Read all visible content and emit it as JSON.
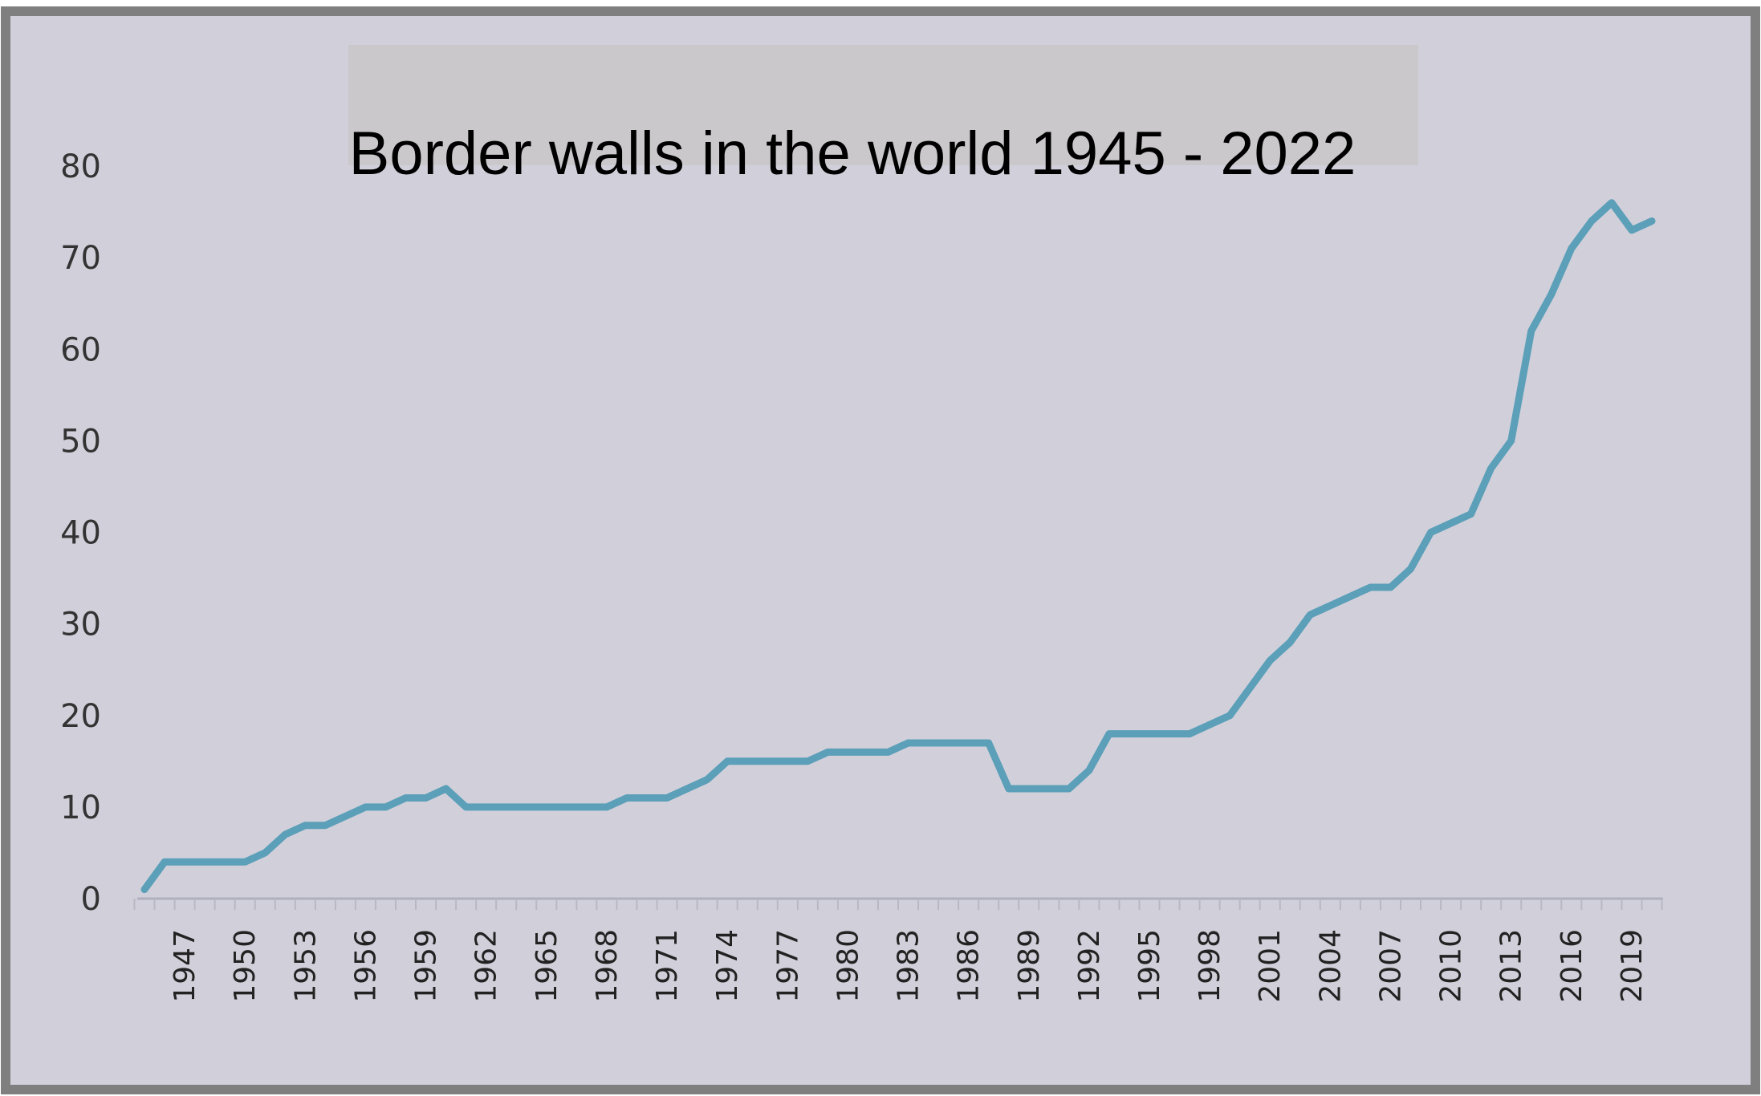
{
  "chart_data": {
    "type": "line",
    "title": "Border walls in the world 1945 - 2022",
    "xlabel": "",
    "ylabel": "",
    "ylim": [
      0,
      80
    ],
    "yticks": [
      0,
      10,
      20,
      30,
      40,
      50,
      60,
      70,
      80
    ],
    "xlim": [
      1945,
      2020
    ],
    "xticks": [
      1947,
      1950,
      1953,
      1956,
      1959,
      1962,
      1965,
      1968,
      1971,
      1974,
      1977,
      1980,
      1983,
      1986,
      1989,
      1992,
      1995,
      1998,
      2001,
      2004,
      2007,
      2010,
      2013,
      2016,
      2019
    ],
    "grid": false,
    "legend": "none",
    "colors": {
      "line": "#5b9fb8",
      "background": "#d1d0da",
      "frame": "#7f7f7f",
      "title_box": "#cbc8cb"
    },
    "series": [
      {
        "x": [
          1945,
          1946,
          1947,
          1948,
          1949,
          1950,
          1951,
          1952,
          1953,
          1954,
          1955,
          1956,
          1957,
          1958,
          1959,
          1960,
          1961,
          1962,
          1963,
          1964,
          1965,
          1966,
          1967,
          1968,
          1969,
          1970,
          1971,
          1972,
          1973,
          1974,
          1975,
          1976,
          1977,
          1978,
          1979,
          1980,
          1981,
          1982,
          1983,
          1984,
          1985,
          1986,
          1987,
          1988,
          1989,
          1990,
          1991,
          1992,
          1993,
          1994,
          1995,
          1996,
          1997,
          1998,
          1999,
          2000,
          2001,
          2002,
          2003,
          2004,
          2005,
          2006,
          2007,
          2008,
          2009,
          2010,
          2011,
          2012,
          2013,
          2014,
          2015,
          2016,
          2017,
          2018,
          2019,
          2020
        ],
        "values": [
          1,
          4,
          4,
          4,
          4,
          4,
          5,
          7,
          8,
          8,
          9,
          10,
          10,
          11,
          11,
          12,
          10,
          10,
          10,
          10,
          10,
          10,
          10,
          10,
          11,
          11,
          11,
          12,
          13,
          15,
          15,
          15,
          15,
          15,
          16,
          16,
          16,
          16,
          17,
          17,
          17,
          17,
          17,
          12,
          12,
          12,
          12,
          14,
          18,
          18,
          18,
          18,
          18,
          19,
          20,
          23,
          26,
          28,
          31,
          32,
          33,
          34,
          34,
          36,
          40,
          41,
          42,
          47,
          50,
          62,
          66,
          71,
          74,
          76,
          73,
          74
        ]
      }
    ]
  }
}
